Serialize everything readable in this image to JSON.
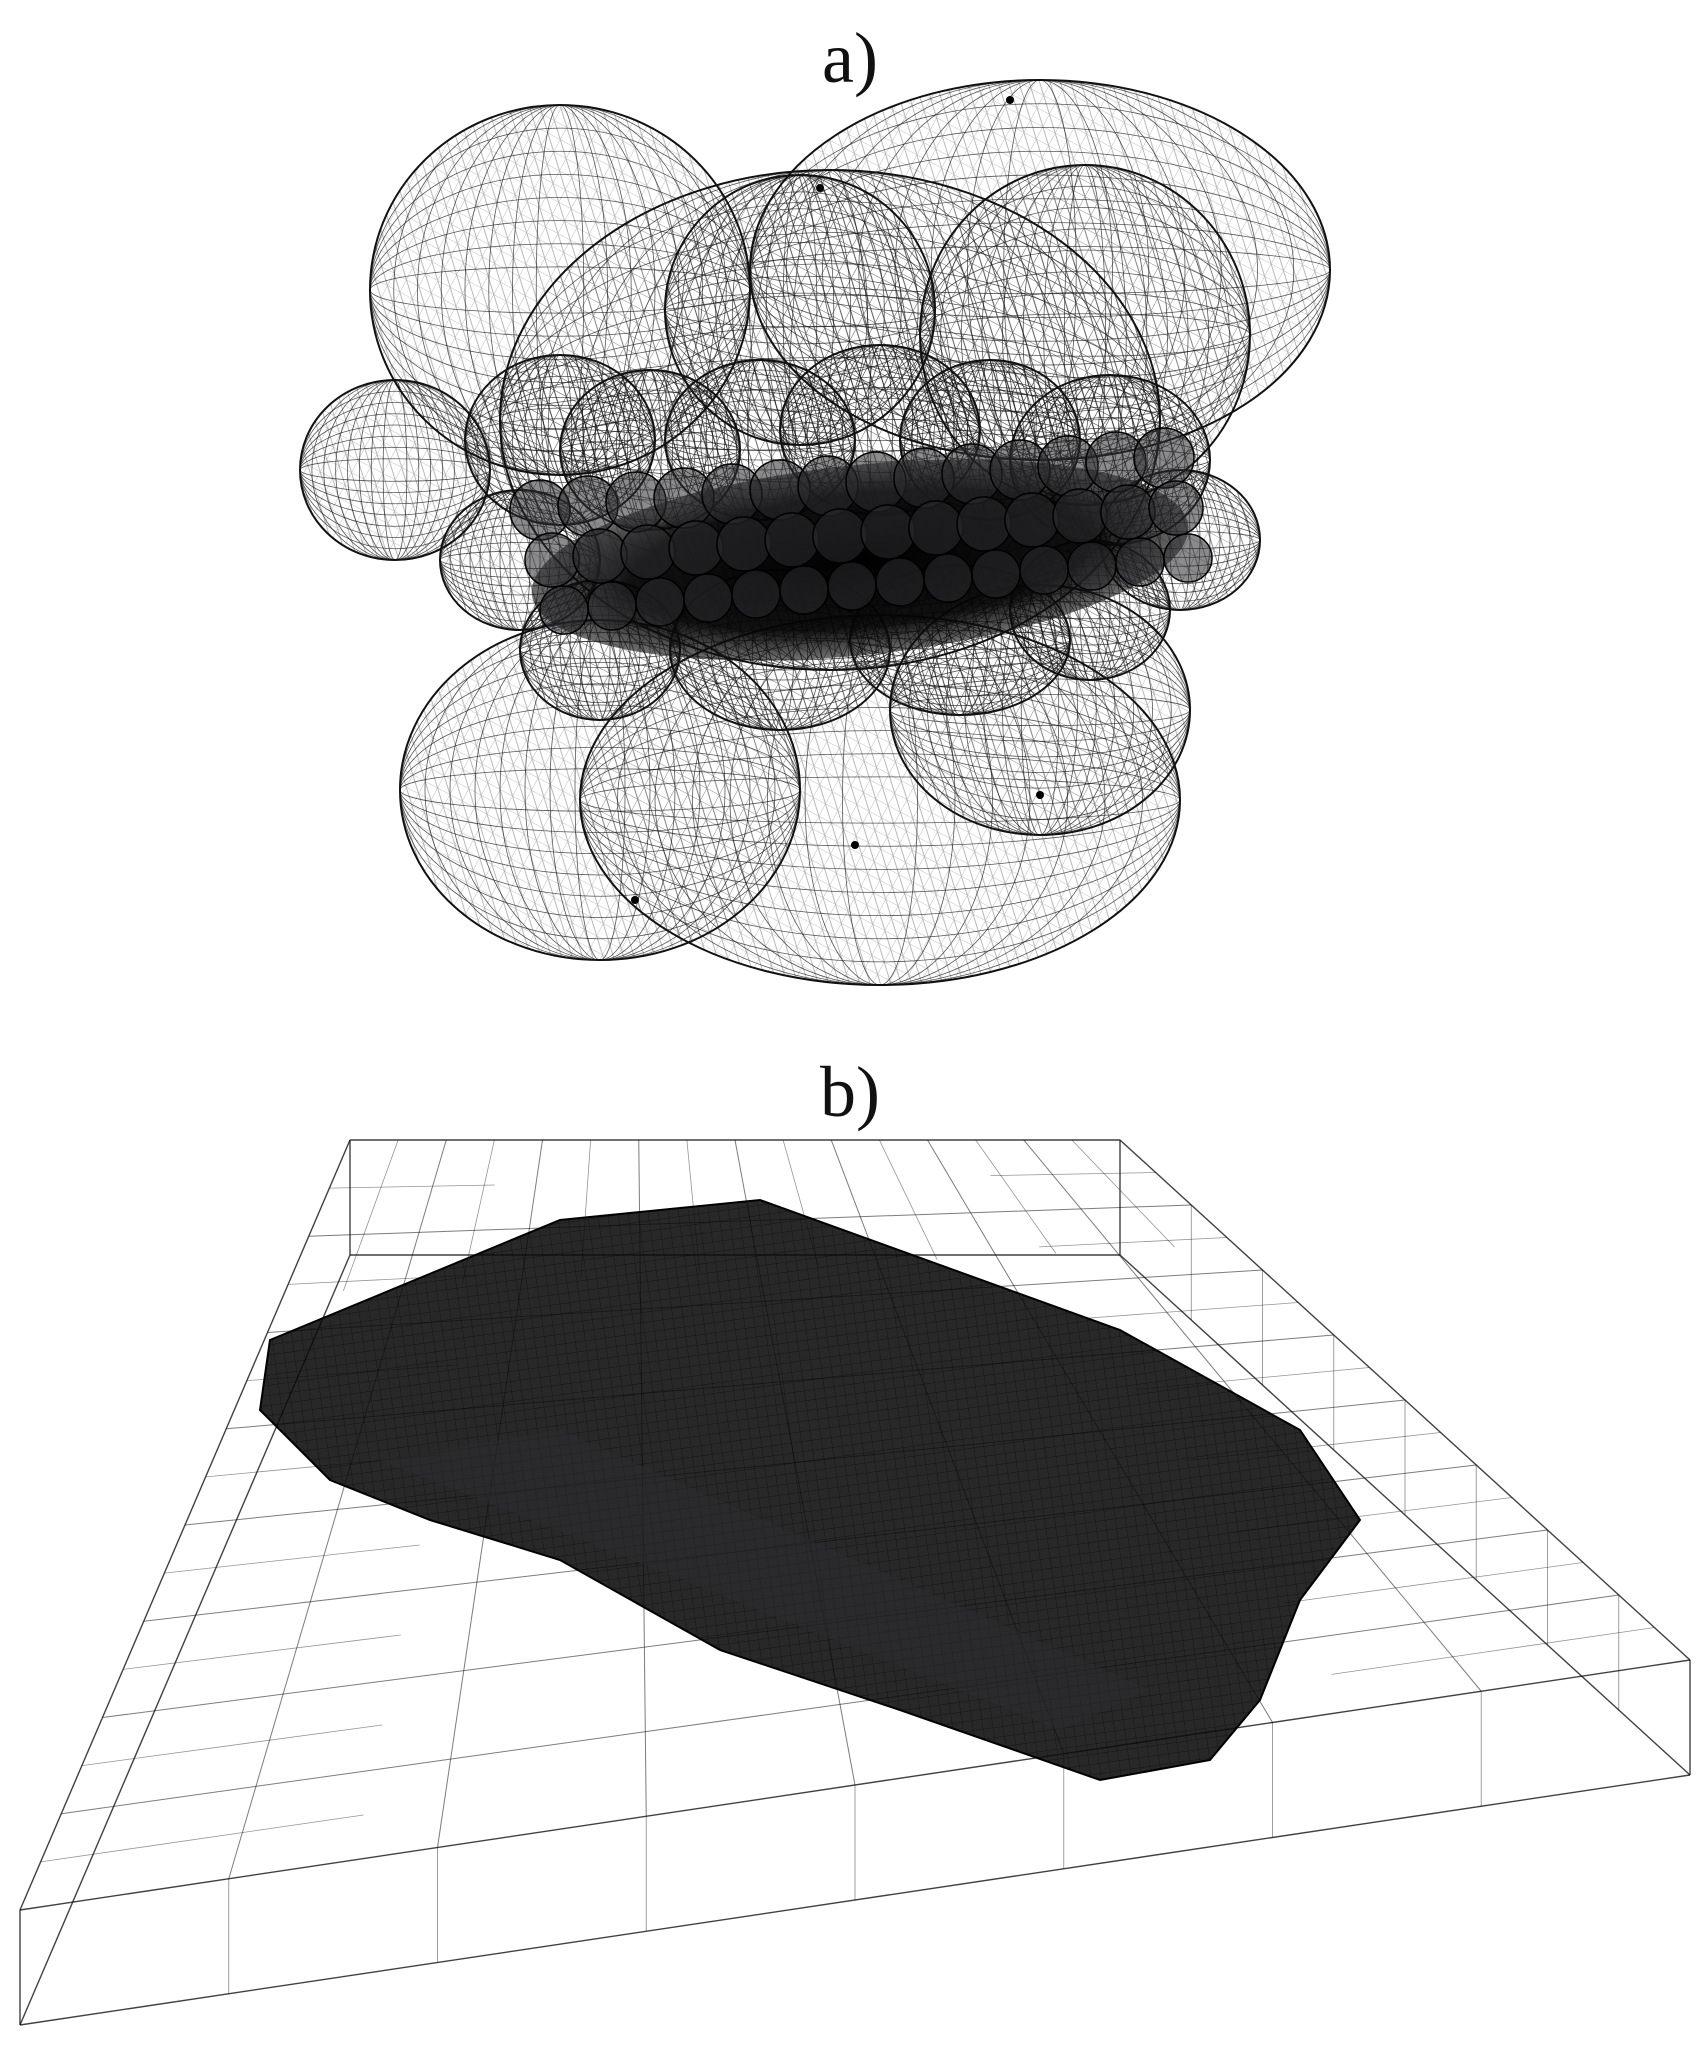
{
  "panels": [
    {
      "label": "a)",
      "depicts": "bounding-sphere-hierarchy-wireframe"
    },
    {
      "label": "b)",
      "depicts": "octree-bounding-box-wireframe"
    }
  ],
  "colors": {
    "background": "#ffffff",
    "wire": "#111111",
    "dense_fill": "#0a0a0a",
    "dense_tint": "#2b2a2e"
  }
}
